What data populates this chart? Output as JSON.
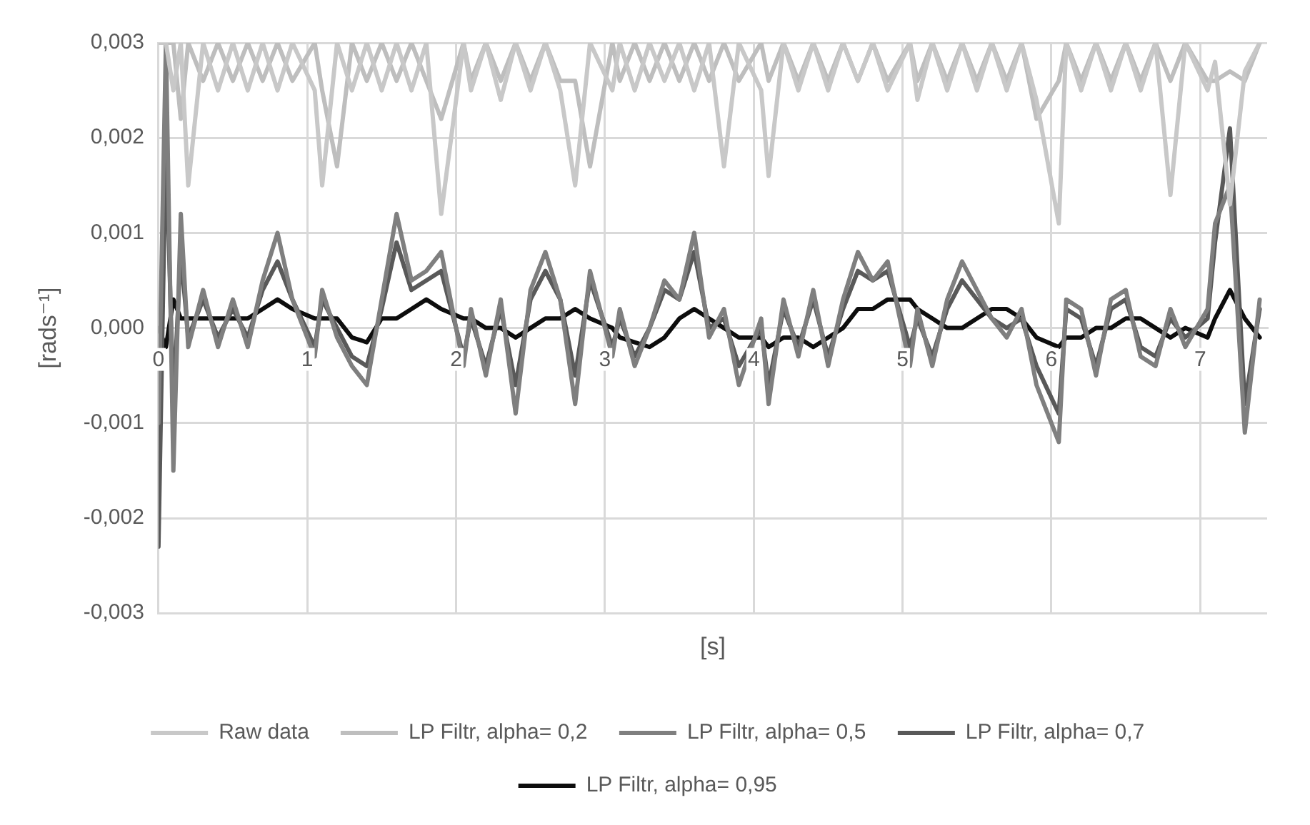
{
  "chart_data": {
    "type": "line",
    "xlabel": "[s]",
    "ylabel": "[rads⁻¹]",
    "x": [
      0,
      0.05,
      0.1,
      0.15,
      0.2,
      0.3,
      0.4,
      0.5,
      0.6,
      0.7,
      0.8,
      0.9,
      1.05,
      1.1,
      1.2,
      1.3,
      1.4,
      1.5,
      1.6,
      1.7,
      1.8,
      1.9,
      2.05,
      2.1,
      2.2,
      2.3,
      2.4,
      2.5,
      2.6,
      2.7,
      2.8,
      2.9,
      3.05,
      3.1,
      3.2,
      3.3,
      3.4,
      3.5,
      3.6,
      3.7,
      3.8,
      3.9,
      4.05,
      4.1,
      4.2,
      4.3,
      4.4,
      4.5,
      4.6,
      4.7,
      4.8,
      4.9,
      5.05,
      5.1,
      5.2,
      5.3,
      5.4,
      5.5,
      5.6,
      5.7,
      5.8,
      5.9,
      6.05,
      6.1,
      6.2,
      6.3,
      6.4,
      6.5,
      6.6,
      6.7,
      6.8,
      6.9,
      7.05,
      7.1,
      7.2,
      7.3,
      7.4
    ],
    "series": [
      {
        "name": "Raw data",
        "color": "#c8c8c8",
        "values": [
          0.003,
          0.003,
          0.0025,
          0.003,
          0.0015,
          0.003,
          0.0025,
          0.003,
          0.0025,
          0.003,
          0.0025,
          0.003,
          0.0025,
          0.0015,
          0.003,
          0.0025,
          0.003,
          0.0025,
          0.003,
          0.0025,
          0.003,
          0.0012,
          0.003,
          0.0025,
          0.003,
          0.0024,
          0.003,
          0.0025,
          0.003,
          0.0025,
          0.0015,
          0.003,
          0.0025,
          0.003,
          0.0025,
          0.003,
          0.0026,
          0.003,
          0.0025,
          0.003,
          0.0017,
          0.003,
          0.0025,
          0.0016,
          0.003,
          0.0025,
          0.003,
          0.0025,
          0.003,
          0.0026,
          0.003,
          0.0025,
          0.003,
          0.0024,
          0.003,
          0.0025,
          0.003,
          0.0025,
          0.003,
          0.0025,
          0.003,
          0.0024,
          0.0011,
          0.003,
          0.0025,
          0.003,
          0.0025,
          0.003,
          0.0025,
          0.003,
          0.0014,
          0.003,
          0.0025,
          0.0028,
          0.0013,
          0.0027,
          0.003
        ]
      },
      {
        "name": "LP Filtr, alpha= 0,2",
        "color": "#bebebe",
        "values": [
          0.003,
          0.003,
          0.003,
          0.0022,
          0.003,
          0.0026,
          0.003,
          0.0026,
          0.003,
          0.0026,
          0.003,
          0.0026,
          0.003,
          0.0025,
          0.0017,
          0.003,
          0.0026,
          0.003,
          0.0026,
          0.003,
          0.0026,
          0.0022,
          0.003,
          0.0026,
          0.003,
          0.0026,
          0.003,
          0.0026,
          0.003,
          0.0026,
          0.0026,
          0.0017,
          0.003,
          0.0026,
          0.003,
          0.0026,
          0.003,
          0.0026,
          0.003,
          0.0026,
          0.003,
          0.0026,
          0.003,
          0.0026,
          0.003,
          0.0026,
          0.003,
          0.0026,
          0.003,
          0.0026,
          0.003,
          0.0026,
          0.003,
          0.0026,
          0.003,
          0.0026,
          0.003,
          0.0026,
          0.003,
          0.0026,
          0.003,
          0.0022,
          0.0026,
          0.003,
          0.0026,
          0.003,
          0.0026,
          0.003,
          0.0026,
          0.003,
          0.0026,
          0.003,
          0.0026,
          0.0026,
          0.0027,
          0.0026,
          0.003
        ]
      },
      {
        "name": "LP Filtr, alpha= 0,5",
        "color": "#7f7f7f",
        "values": [
          -0.001,
          0.003,
          -0.0015,
          0.0012,
          -0.0002,
          0.0004,
          -0.0002,
          0.0003,
          -0.0002,
          0.0005,
          0.001,
          0.0003,
          -0.0003,
          0.0004,
          -0.0001,
          -0.0004,
          -0.0006,
          0.0003,
          0.0012,
          0.0005,
          0.0006,
          0.0008,
          -0.0004,
          0.0002,
          -0.0005,
          0.0003,
          -0.0009,
          0.0004,
          0.0008,
          0.0003,
          -0.0008,
          0.0006,
          -0.0003,
          0.0002,
          -0.0004,
          0,
          0.0005,
          0.0003,
          0.001,
          -0.0001,
          0.0002,
          -0.0006,
          0.0001,
          -0.0008,
          0.0003,
          -0.0003,
          0.0004,
          -0.0004,
          0.0003,
          0.0008,
          0.0005,
          0.0007,
          -0.0004,
          0.0002,
          -0.0004,
          0.0003,
          0.0007,
          0.0004,
          0.0001,
          -0.0001,
          0.0002,
          -0.0006,
          -0.0012,
          0.0003,
          0.0002,
          -0.0005,
          0.0003,
          0.0004,
          -0.0003,
          -0.0004,
          0.0002,
          -0.0002,
          0.0002,
          0.0011,
          0.0015,
          -0.0011,
          0.0003
        ]
      },
      {
        "name": "LP Filtr, alpha= 0,7",
        "color": "#595959",
        "values": [
          -0.0023,
          0.002,
          -0.0008,
          0.0008,
          -0.0001,
          0.0003,
          -0.0001,
          0.0002,
          -0.0001,
          0.0004,
          0.0007,
          0.0003,
          -0.0002,
          0.0003,
          0,
          -0.0003,
          -0.0004,
          0.0002,
          0.0009,
          0.0004,
          0.0005,
          0.0006,
          -0.0003,
          0.0001,
          -0.0004,
          0.0002,
          -0.0006,
          0.0003,
          0.0006,
          0.0003,
          -0.0005,
          0.0005,
          -0.0002,
          0.0001,
          -0.0003,
          0,
          0.0004,
          0.0003,
          0.0008,
          0,
          0.0001,
          -0.0004,
          0,
          -0.0006,
          0.0002,
          -0.0002,
          0.0003,
          -0.0003,
          0.0002,
          0.0006,
          0.0005,
          0.0006,
          -0.0002,
          0.0001,
          -0.0003,
          0.0002,
          0.0005,
          0.0003,
          0.0001,
          0,
          0.0001,
          -0.0004,
          -0.0009,
          0.0002,
          0.0001,
          -0.0004,
          0.0002,
          0.0003,
          -0.0002,
          -0.0003,
          0.0001,
          -0.0001,
          0.0001,
          0.0009,
          0.0021,
          -0.0008,
          0.0002
        ]
      },
      {
        "name": "LP Filtr, alpha= 0,95",
        "color": "#0d0d0d",
        "values": [
          0,
          -0.0002,
          0.0003,
          0.0001,
          0.0001,
          0.0001,
          0.0001,
          0.0001,
          0.0001,
          0.0002,
          0.0003,
          0.0002,
          0.0001,
          0.0001,
          0.0001,
          -0.0001,
          -0.00015,
          0.0001,
          0.0001,
          0.0002,
          0.0003,
          0.0002,
          0.0001,
          0.0001,
          0,
          0,
          -0.0001,
          0,
          0.0001,
          0.0001,
          0.0002,
          0.0001,
          0,
          -0.0001,
          -0.00015,
          -0.0002,
          -0.0001,
          0.0001,
          0.0002,
          0.0001,
          0,
          -0.0001,
          -0.0001,
          -0.0002,
          -0.0001,
          -0.0001,
          -0.0002,
          -0.0001,
          0,
          0.0002,
          0.0002,
          0.0003,
          0.0003,
          0.0002,
          0.0001,
          0,
          0,
          0.0001,
          0.0002,
          0.0002,
          0.0001,
          -0.0001,
          -0.0002,
          -0.0001,
          -0.0001,
          0,
          0,
          0.0001,
          0.0001,
          0,
          -0.0001,
          0,
          -0.0001,
          0.0001,
          0.0004,
          0.0001,
          -0.0001
        ]
      }
    ],
    "xlim": [
      0,
      7.45
    ],
    "xticks": [
      0,
      1,
      2,
      3,
      4,
      5,
      6,
      7
    ],
    "ylim": [
      -0.003,
      0.003
    ],
    "yticks": [
      {
        "value": -0.003,
        "label": "-0,003"
      },
      {
        "value": -0.002,
        "label": "-0,002"
      },
      {
        "value": -0.001,
        "label": "-0,001"
      },
      {
        "value": 0,
        "label": "0,000"
      },
      {
        "value": 0.001,
        "label": "0,001"
      },
      {
        "value": 0.002,
        "label": "0,002"
      },
      {
        "value": 0.003,
        "label": "0,003"
      }
    ],
    "grid": true,
    "legend": "bottom"
  }
}
